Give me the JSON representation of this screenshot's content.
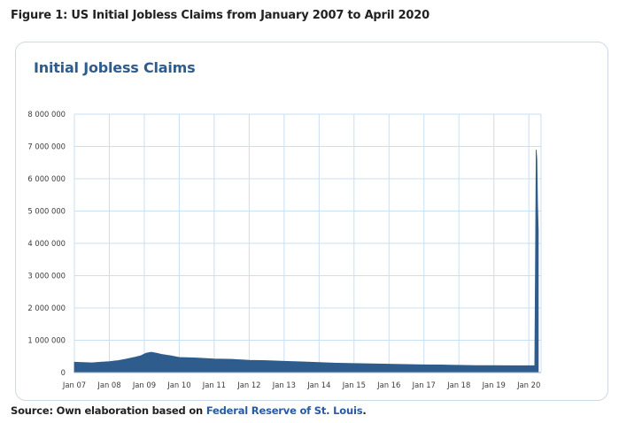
{
  "figure_title": "Figure 1: US Initial Jobless Claims from January 2007 to April 2020",
  "source": {
    "prefix": "Source: Own elaboration based on ",
    "link_text": "Federal Reserve of St. Louis",
    "suffix": "."
  },
  "chart_data": {
    "type": "area",
    "title": "Initial Jobless Claims",
    "xlabel": "",
    "ylabel": "",
    "color": "#2e5d8d",
    "grid_color": "#c9dff2",
    "ylim": [
      0,
      8000000
    ],
    "xlim": [
      2007.0,
      2020.35
    ],
    "y_ticks": [
      0,
      1000000,
      2000000,
      3000000,
      4000000,
      5000000,
      6000000,
      7000000,
      8000000
    ],
    "y_tick_labels": [
      "0",
      "1 000 000",
      "2 000 000",
      "3 000 000",
      "4 000 000",
      "5 000 000",
      "6 000 000",
      "7 000 000",
      "8 000 000"
    ],
    "x_ticks": [
      2007,
      2008,
      2009,
      2010,
      2011,
      2012,
      2013,
      2014,
      2015,
      2016,
      2017,
      2018,
      2019,
      2020
    ],
    "x_tick_labels": [
      "Jan 07",
      "Jan 08",
      "Jan 09",
      "Jan 10",
      "Jan 11",
      "Jan 12",
      "Jan 13",
      "Jan 14",
      "Jan 15",
      "Jan 16",
      "Jan 17",
      "Jan 18",
      "Jan 19",
      "Jan 20"
    ],
    "series": [
      {
        "name": "Initial Jobless Claims",
        "x": [
          2007.0,
          2007.25,
          2007.5,
          2007.75,
          2008.0,
          2008.25,
          2008.5,
          2008.75,
          2008.9,
          2009.05,
          2009.2,
          2009.35,
          2009.5,
          2009.75,
          2010.0,
          2010.5,
          2011.0,
          2011.5,
          2012.0,
          2012.5,
          2013.0,
          2013.5,
          2014.0,
          2014.5,
          2015.0,
          2015.5,
          2016.0,
          2016.5,
          2017.0,
          2017.5,
          2018.0,
          2018.5,
          2019.0,
          2019.5,
          2020.0,
          2020.17,
          2020.19,
          2020.21,
          2020.23,
          2020.25,
          2020.27
        ],
        "values": [
          320000,
          310000,
          300000,
          320000,
          340000,
          370000,
          420000,
          480000,
          520000,
          600000,
          630000,
          600000,
          560000,
          520000,
          470000,
          450000,
          420000,
          410000,
          380000,
          370000,
          350000,
          330000,
          310000,
          290000,
          280000,
          270000,
          260000,
          250000,
          240000,
          235000,
          225000,
          215000,
          215000,
          210000,
          210000,
          210000,
          3300000,
          6900000,
          6600000,
          5200000,
          4400000
        ]
      }
    ]
  }
}
